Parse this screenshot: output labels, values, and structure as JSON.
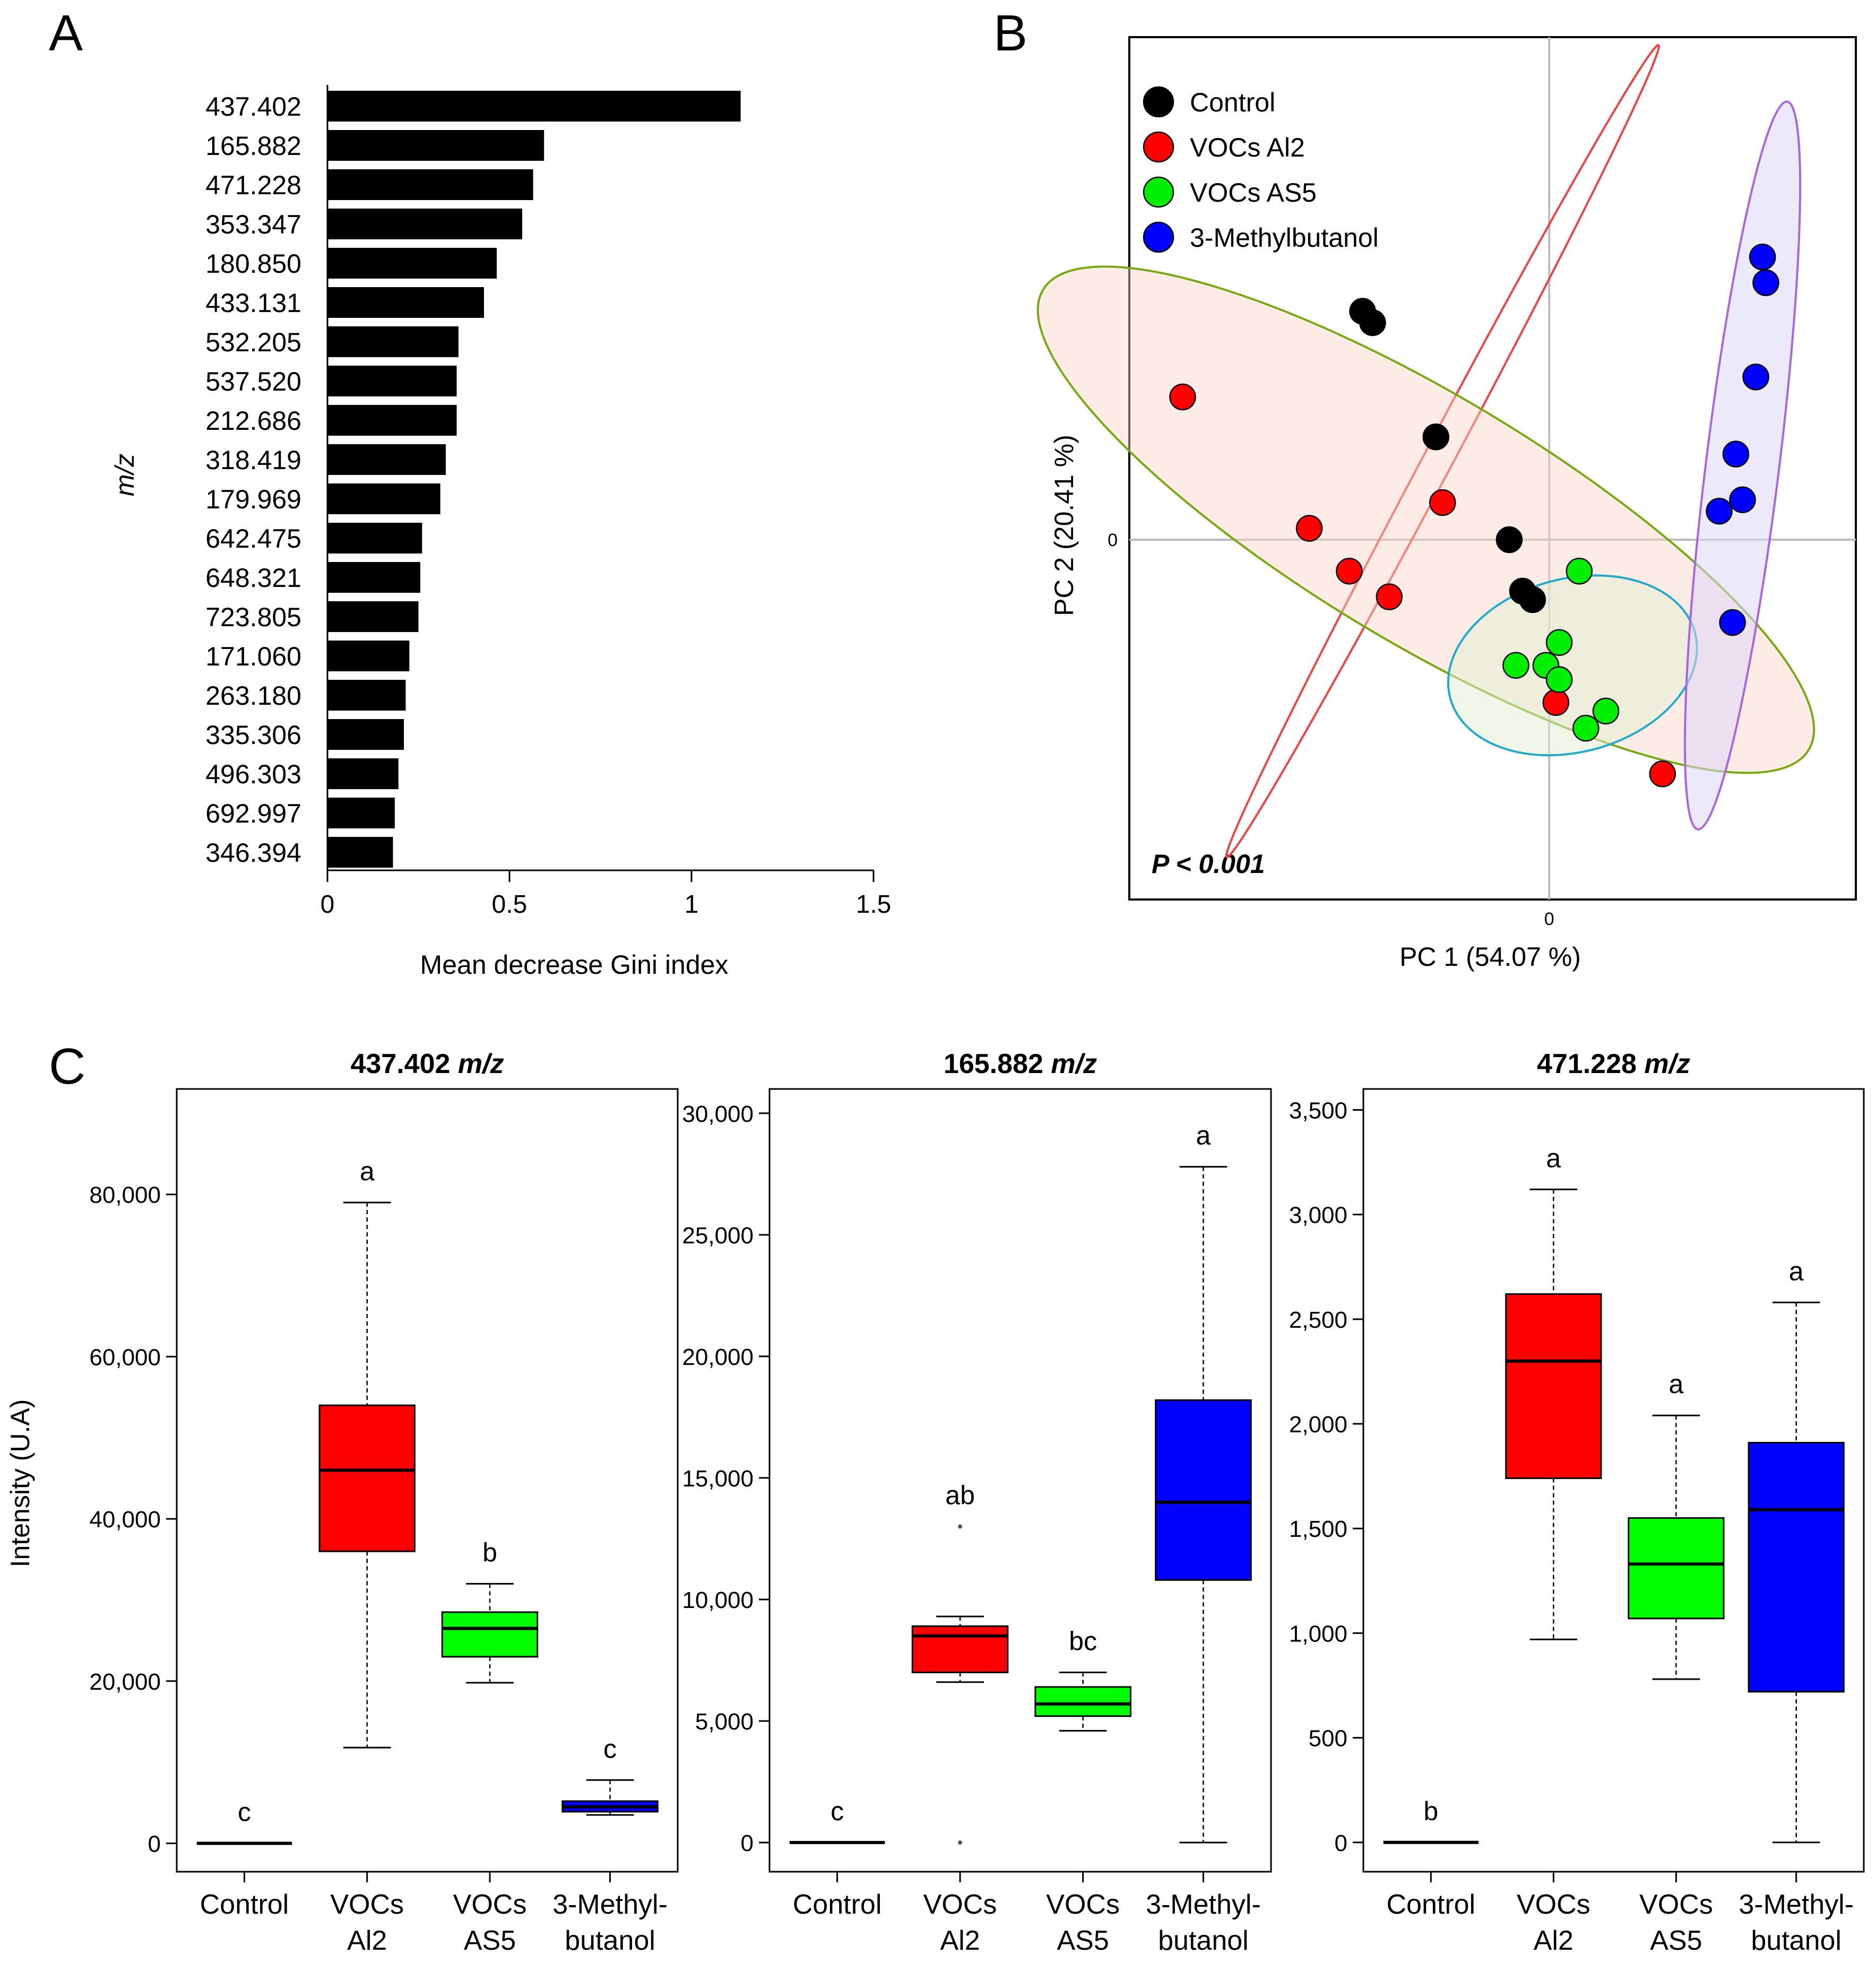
{
  "figure": {
    "panel_labels": [
      "A",
      "B",
      "C"
    ],
    "colors": {
      "control": "#000000",
      "al2": "#ff0000",
      "as5": "#00ee00",
      "methylbutanol": "#0000ff",
      "ellipse_control": "#ee4444",
      "ellipse_al2": "#77aa11",
      "ellipse_as5": "#22aacc",
      "ellipse_methylbutanol": "#aa66dd"
    }
  },
  "chart_data": [
    {
      "type": "bar",
      "orientation": "horizontal",
      "panel": "A",
      "categories": [
        "437.402",
        "165.882",
        "471.228",
        "353.347",
        "180.850",
        "433.131",
        "532.205",
        "537.520",
        "212.686",
        "318.419",
        "179.969",
        "642.475",
        "648.321",
        "723.805",
        "171.060",
        "263.180",
        "335.306",
        "496.303",
        "692.997",
        "346.394"
      ],
      "values": [
        1.135,
        0.595,
        0.565,
        0.535,
        0.465,
        0.43,
        0.36,
        0.355,
        0.355,
        0.325,
        0.31,
        0.26,
        0.255,
        0.25,
        0.225,
        0.215,
        0.21,
        0.195,
        0.185,
        0.18
      ],
      "xlabel": "Mean decrease Gini index",
      "ylabel": "m/z",
      "xticks": [
        "0",
        "0.5",
        "1",
        "1.5"
      ],
      "xlim": [
        0,
        1.5
      ],
      "bar_color": "#000000"
    },
    {
      "type": "scatter",
      "panel": "B",
      "xlabel": "PC 1 (54.07 %)",
      "ylabel": "PC 2 (20.41 %)",
      "xtick_zero": "0",
      "ytick_zero": "0",
      "annotation": "P < 0.001",
      "xlim": [
        -6.3,
        4.6
      ],
      "ylim": [
        -6.3,
        8.8
      ],
      "legend_position": "top-left",
      "series": [
        {
          "name": "Control",
          "color": "#000000",
          "points": [
            [
              -2.8,
              4.0
            ],
            [
              -2.65,
              3.8
            ],
            [
              -1.7,
              1.8
            ],
            [
              -0.6,
              0.0
            ],
            [
              -0.4,
              -0.9
            ],
            [
              -0.25,
              -1.05
            ]
          ]
        },
        {
          "name": "VOCs Al2",
          "color": "#ff0000",
          "points": [
            [
              -5.5,
              2.5
            ],
            [
              -3.6,
              0.2
            ],
            [
              -3.0,
              -0.55
            ],
            [
              -2.4,
              -1.0
            ],
            [
              -1.6,
              0.65
            ],
            [
              0.1,
              -2.85
            ],
            [
              1.7,
              -4.1
            ]
          ]
        },
        {
          "name": "VOCs AS5",
          "color": "#00ee00",
          "points": [
            [
              0.45,
              -0.55
            ],
            [
              0.15,
              -1.8
            ],
            [
              -0.5,
              -2.2
            ],
            [
              -0.05,
              -2.2
            ],
            [
              0.15,
              -2.45
            ],
            [
              0.85,
              -3.0
            ],
            [
              0.55,
              -3.3
            ]
          ]
        },
        {
          "name": "3-Methylbutanol",
          "color": "#0000ff",
          "points": [
            [
              3.2,
              4.95
            ],
            [
              3.25,
              4.5
            ],
            [
              3.1,
              2.85
            ],
            [
              2.8,
              1.5
            ],
            [
              2.9,
              0.7
            ],
            [
              2.55,
              0.5
            ],
            [
              2.75,
              -1.45
            ]
          ]
        }
      ],
      "ellipses": [
        {
          "group": "Control",
          "center": [
            -1.6,
            1.55
          ],
          "rx": 6.9,
          "ry": 0.22,
          "rot_deg": -62
        },
        {
          "group": "VOCs Al2",
          "center": [
            -1.85,
            0.35
          ],
          "rx": 6.7,
          "ry": 1.85,
          "rot_deg": 31
        },
        {
          "group": "VOCs AS5",
          "center": [
            0.35,
            -2.2
          ],
          "rx": 1.9,
          "ry": 1.3,
          "rot_deg": -15
        },
        {
          "group": "3-Methylbutanol",
          "center": [
            2.9,
            1.3
          ],
          "rx": 5.5,
          "ry": 0.55,
          "rot_deg": -83
        }
      ]
    },
    {
      "type": "box",
      "panel": "C",
      "title": "437.402",
      "title_unit": "m/z",
      "ylabel": "Intensity (U.A)",
      "ylim": [
        -3500,
        93000
      ],
      "yticks": [
        0,
        20000,
        40000,
        60000,
        80000
      ],
      "ytick_labels": [
        "0",
        "20,000",
        "40,000",
        "60,000",
        "80,000"
      ],
      "groups": [
        {
          "label_lines": [
            "Control"
          ],
          "color": "#000000",
          "fill": "#000000",
          "min": 0,
          "q1": 0,
          "median": 0,
          "q3": 0,
          "max": 0,
          "letter": "c"
        },
        {
          "label_lines": [
            "VOCs",
            "Al2"
          ],
          "color": "#ff0000",
          "fill": "#ff0000",
          "min": 11800,
          "q1": 36000,
          "median": 46000,
          "q3": 54000,
          "max": 79000,
          "letter": "a"
        },
        {
          "label_lines": [
            "VOCs",
            "AS5"
          ],
          "color": "#00ee00",
          "fill": "#00ff00",
          "min": 19800,
          "q1": 23000,
          "median": 26500,
          "q3": 28500,
          "max": 32000,
          "letter": "b"
        },
        {
          "label_lines": [
            "3-Methyl-",
            "butanol"
          ],
          "color": "#0000ff",
          "fill": "#0000ff",
          "min": 3500,
          "q1": 3900,
          "median": 4500,
          "q3": 5200,
          "max": 7800,
          "letter": "c"
        }
      ]
    },
    {
      "type": "box",
      "panel": "C",
      "title": "165.882",
      "title_unit": "m/z",
      "ylabel": "",
      "ylim": [
        -1200,
        31000
      ],
      "yticks": [
        0,
        5000,
        10000,
        15000,
        20000,
        25000,
        30000
      ],
      "ytick_labels": [
        "0",
        "5,000",
        "10,000",
        "15,000",
        "20,000",
        "25,000",
        "30,000"
      ],
      "groups": [
        {
          "label_lines": [
            "Control"
          ],
          "color": "#000000",
          "fill": "#000000",
          "min": 0,
          "q1": 0,
          "median": 0,
          "q3": 0,
          "max": 0,
          "letter": "c"
        },
        {
          "label_lines": [
            "VOCs",
            "Al2"
          ],
          "color": "#ff0000",
          "fill": "#ff0000",
          "min": 6600,
          "q1": 7000,
          "median": 8500,
          "q3": 8900,
          "max": 9300,
          "letter": "ab",
          "outliers": [
            13000,
            0
          ]
        },
        {
          "label_lines": [
            "VOCs",
            "AS5"
          ],
          "color": "#00ee00",
          "fill": "#00ff00",
          "min": 4600,
          "q1": 5200,
          "median": 5700,
          "q3": 6400,
          "max": 7000,
          "letter": "bc"
        },
        {
          "label_lines": [
            "3-Methyl-",
            "butanol"
          ],
          "color": "#0000ff",
          "fill": "#0000ff",
          "min": 0,
          "q1": 10800,
          "median": 14000,
          "q3": 18200,
          "max": 27800,
          "letter": "a"
        }
      ]
    },
    {
      "type": "box",
      "panel": "C",
      "title": "471.228",
      "title_unit": "m/z",
      "ylabel": "",
      "ylim": [
        -140,
        3600
      ],
      "yticks": [
        0,
        500,
        1000,
        1500,
        2000,
        2500,
        3000,
        3500
      ],
      "ytick_labels": [
        "0",
        "500",
        "1,000",
        "1,500",
        "2,000",
        "2,500",
        "3,000",
        "3,500"
      ],
      "groups": [
        {
          "label_lines": [
            "Control"
          ],
          "color": "#000000",
          "fill": "#000000",
          "min": 0,
          "q1": 0,
          "median": 0,
          "q3": 0,
          "max": 0,
          "letter": "b"
        },
        {
          "label_lines": [
            "VOCs",
            "Al2"
          ],
          "color": "#ff0000",
          "fill": "#ff0000",
          "min": 970,
          "q1": 1740,
          "median": 2300,
          "q3": 2620,
          "max": 3120,
          "letter": "a"
        },
        {
          "label_lines": [
            "VOCs",
            "AS5"
          ],
          "color": "#00ee00",
          "fill": "#00ff00",
          "min": 780,
          "q1": 1070,
          "median": 1330,
          "q3": 1550,
          "max": 2040,
          "letter": "a"
        },
        {
          "label_lines": [
            "3-Methyl-",
            "butanol"
          ],
          "color": "#0000ff",
          "fill": "#0000ff",
          "min": 0,
          "q1": 720,
          "median": 1590,
          "q3": 1910,
          "max": 2580,
          "letter": "a"
        }
      ]
    }
  ]
}
